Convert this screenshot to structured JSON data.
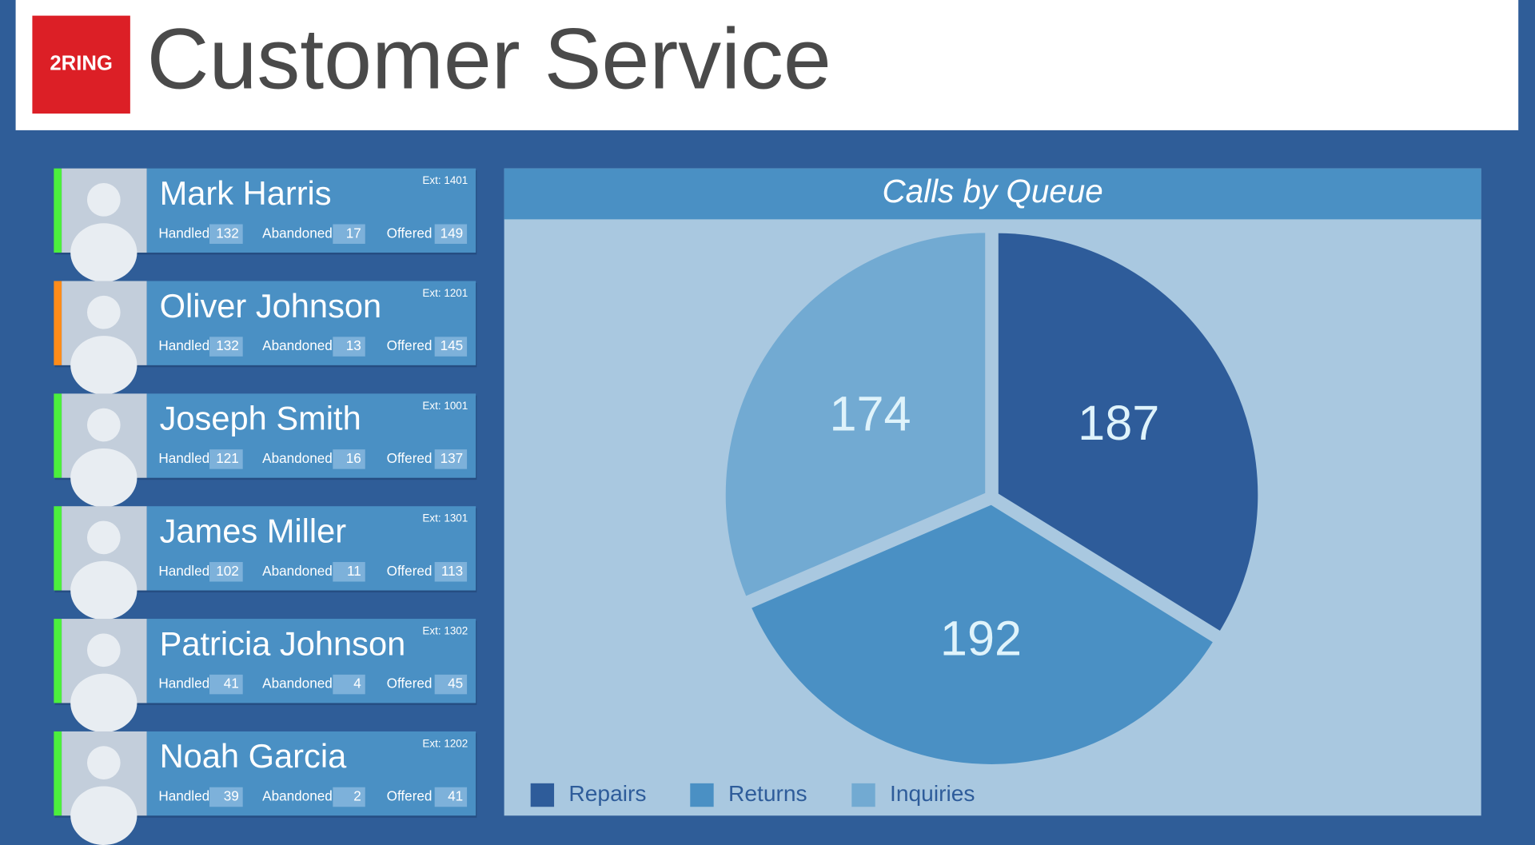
{
  "header": {
    "logo": "2RING",
    "title": "Customer Service"
  },
  "stat_labels": [
    "Handled",
    "Abandoned",
    "Offered"
  ],
  "agents": [
    {
      "name": "Mark Harris",
      "ext": "Ext: 1401",
      "status_color": "#4cf03c",
      "stats": [
        132,
        17,
        149
      ]
    },
    {
      "name": "Oliver Johnson",
      "ext": "Ext: 1201",
      "status_color": "#ff8c1a",
      "stats": [
        132,
        13,
        145
      ]
    },
    {
      "name": "Joseph Smith",
      "ext": "Ext: 1001",
      "status_color": "#4cf03c",
      "stats": [
        121,
        16,
        137
      ]
    },
    {
      "name": "James Miller",
      "ext": "Ext: 1301",
      "status_color": "#4cf03c",
      "stats": [
        102,
        11,
        113
      ]
    },
    {
      "name": "Patricia Johnson",
      "ext": "Ext: 1302",
      "status_color": "#4cf03c",
      "stats": [
        41,
        4,
        45
      ]
    },
    {
      "name": "Noah Garcia",
      "ext": "Ext: 1202",
      "status_color": "#4cf03c",
      "stats": [
        39,
        2,
        41
      ]
    }
  ],
  "chart_data": {
    "type": "pie",
    "title": "Calls by Queue",
    "categories": [
      "Repairs",
      "Returns",
      "Inquiries"
    ],
    "values": [
      187,
      192,
      174
    ],
    "colors": [
      "#2e5c9a",
      "#4a90c4",
      "#72aad2"
    ]
  }
}
